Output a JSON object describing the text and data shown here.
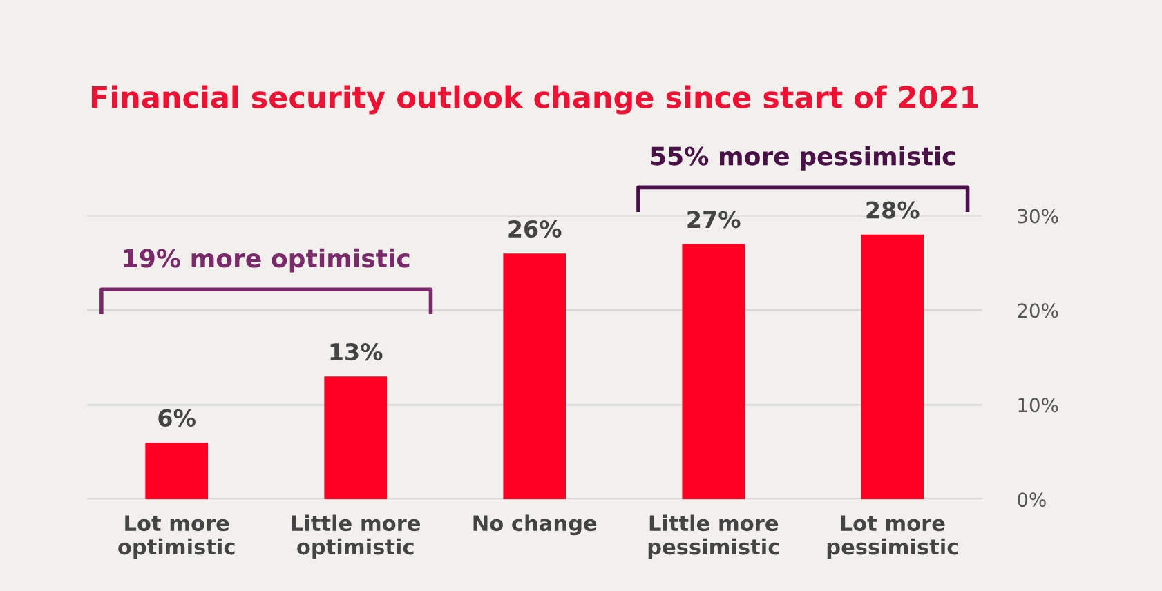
{
  "chart_data": {
    "type": "bar",
    "title": "Financial security outlook change since start of 2021",
    "categories": [
      "Lot more\noptimistic",
      "Little more\noptimistic",
      "No change",
      "Little more\npessimistic",
      "Lot more\npessimistic"
    ],
    "values": [
      6,
      13,
      26,
      27,
      28
    ],
    "color": "#ff0022",
    "data_labels": true,
    "value_labels": [
      "6%",
      "13%",
      "26%",
      "27%",
      "28%"
    ],
    "ylim": [
      0,
      30
    ],
    "yticks": [
      {
        "value": 0,
        "label": "0%"
      },
      {
        "value": 10,
        "label": "10%"
      },
      {
        "value": 20,
        "label": "20%"
      },
      {
        "value": 30,
        "label": "30%"
      }
    ],
    "grid": "y",
    "annotations": [
      "19% more optimistic",
      "55% more pessimistic"
    ]
  }
}
